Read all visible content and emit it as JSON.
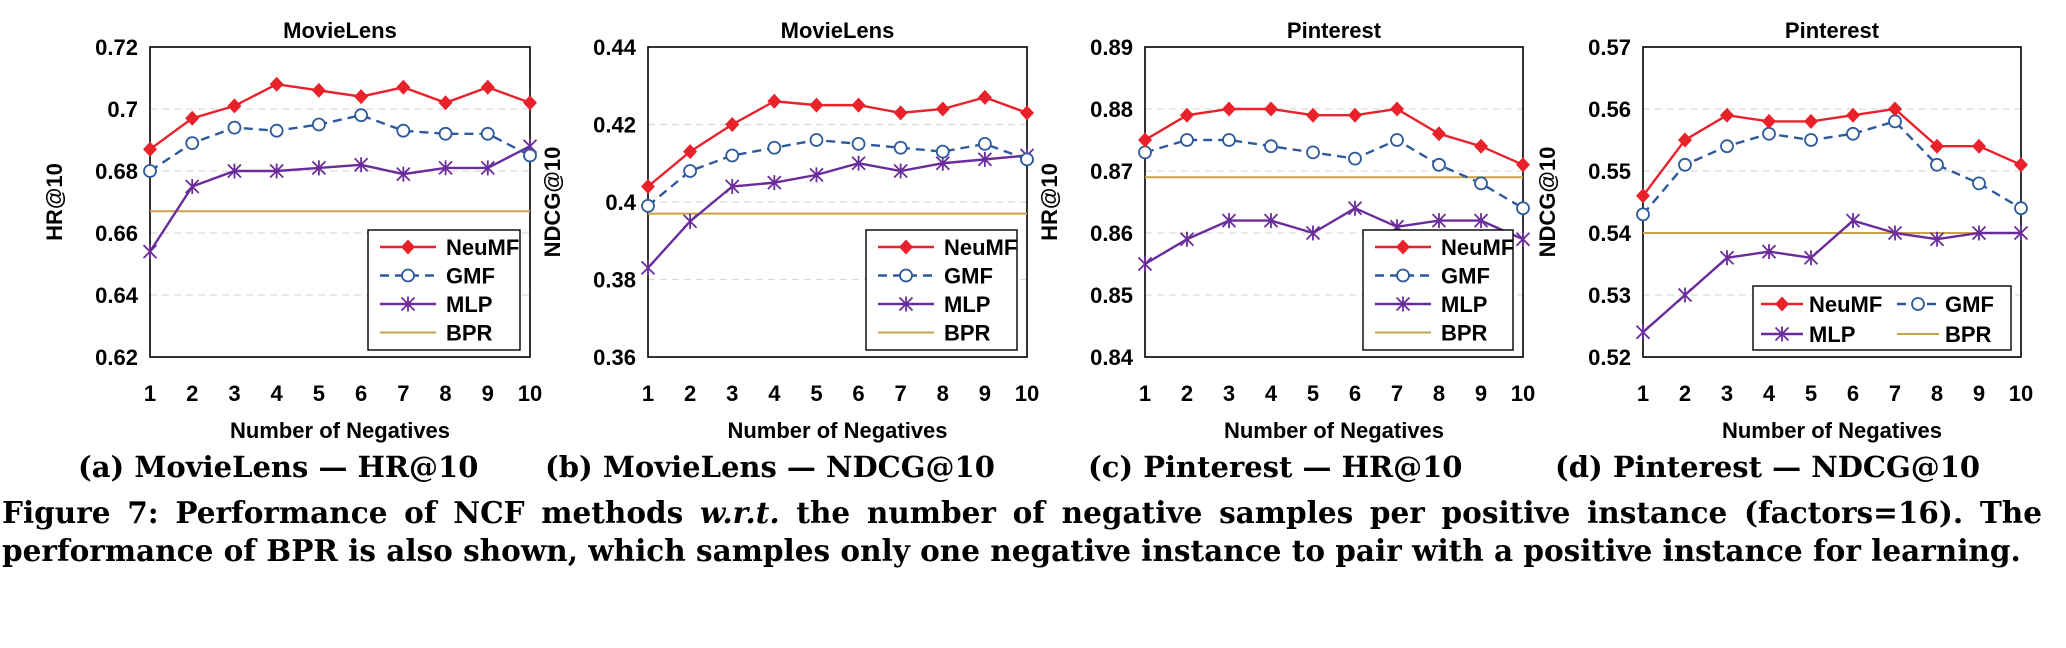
{
  "colors": {
    "NeuMF": "#e8212a",
    "GMF": "#2e5a9c",
    "MLP": "#6a2c9b",
    "BPR": "#c8a14a"
  },
  "chart_data": [
    {
      "type": "line",
      "title": "MovieLens",
      "xlabel": "Number of Negatives",
      "ylabel": "HR@10",
      "x": [
        1,
        2,
        3,
        4,
        5,
        6,
        7,
        8,
        9,
        10
      ],
      "ylim": [
        0.62,
        0.72
      ],
      "yticks": [
        "0.62",
        "0.64",
        "0.66",
        "0.68",
        "0.7",
        "0.72"
      ],
      "grid": true,
      "legend_layout": "column",
      "series": [
        {
          "name": "NeuMF",
          "marker": "diamond",
          "values": [
            0.687,
            0.697,
            0.701,
            0.708,
            0.706,
            0.704,
            0.707,
            0.702,
            0.707,
            0.702
          ]
        },
        {
          "name": "GMF",
          "marker": "circle",
          "dashed": true,
          "values": [
            0.68,
            0.689,
            0.694,
            0.693,
            0.695,
            0.698,
            0.693,
            0.692,
            0.692,
            0.685
          ]
        },
        {
          "name": "MLP",
          "marker": "star",
          "values": [
            0.654,
            0.675,
            0.68,
            0.68,
            0.681,
            0.682,
            0.679,
            0.681,
            0.681,
            0.688
          ]
        },
        {
          "name": "BPR",
          "marker": "none",
          "values": [
            0.667,
            0.667,
            0.667,
            0.667,
            0.667,
            0.667,
            0.667,
            0.667,
            0.667,
            0.667
          ]
        }
      ]
    },
    {
      "type": "line",
      "title": "MovieLens",
      "xlabel": "Number of Negatives",
      "ylabel": "NDCG@10",
      "x": [
        1,
        2,
        3,
        4,
        5,
        6,
        7,
        8,
        9,
        10
      ],
      "ylim": [
        0.36,
        0.44
      ],
      "yticks": [
        "0.36",
        "0.38",
        "0.4",
        "0.42",
        "0.44"
      ],
      "grid": true,
      "legend_layout": "column",
      "series": [
        {
          "name": "NeuMF",
          "marker": "diamond",
          "values": [
            0.404,
            0.413,
            0.42,
            0.426,
            0.425,
            0.425,
            0.423,
            0.424,
            0.427,
            0.423
          ]
        },
        {
          "name": "GMF",
          "marker": "circle",
          "dashed": true,
          "values": [
            0.399,
            0.408,
            0.412,
            0.414,
            0.416,
            0.415,
            0.414,
            0.413,
            0.415,
            0.411
          ]
        },
        {
          "name": "MLP",
          "marker": "star",
          "values": [
            0.383,
            0.395,
            0.404,
            0.405,
            0.407,
            0.41,
            0.408,
            0.41,
            0.411,
            0.412
          ]
        },
        {
          "name": "BPR",
          "marker": "none",
          "values": [
            0.397,
            0.397,
            0.397,
            0.397,
            0.397,
            0.397,
            0.397,
            0.397,
            0.397,
            0.397
          ]
        }
      ]
    },
    {
      "type": "line",
      "title": "Pinterest",
      "xlabel": "Number of Negatives",
      "ylabel": "HR@10",
      "x": [
        1,
        2,
        3,
        4,
        5,
        6,
        7,
        8,
        9,
        10
      ],
      "ylim": [
        0.84,
        0.89
      ],
      "yticks": [
        "0.84",
        "0.85",
        "0.86",
        "0.87",
        "0.88",
        "0.89"
      ],
      "grid": true,
      "legend_layout": "column",
      "series": [
        {
          "name": "NeuMF",
          "marker": "diamond",
          "values": [
            0.875,
            0.879,
            0.88,
            0.88,
            0.879,
            0.879,
            0.88,
            0.876,
            0.874,
            0.871
          ]
        },
        {
          "name": "GMF",
          "marker": "circle",
          "dashed": true,
          "values": [
            0.873,
            0.875,
            0.875,
            0.874,
            0.873,
            0.872,
            0.875,
            0.871,
            0.868,
            0.864
          ]
        },
        {
          "name": "MLP",
          "marker": "star",
          "values": [
            0.855,
            0.859,
            0.862,
            0.862,
            0.86,
            0.864,
            0.861,
            0.862,
            0.862,
            0.859
          ]
        },
        {
          "name": "BPR",
          "marker": "none",
          "values": [
            0.869,
            0.869,
            0.869,
            0.869,
            0.869,
            0.869,
            0.869,
            0.869,
            0.869,
            0.869
          ]
        }
      ]
    },
    {
      "type": "line",
      "title": "Pinterest",
      "xlabel": "Number of Negatives",
      "ylabel": "NDCG@10",
      "x": [
        1,
        2,
        3,
        4,
        5,
        6,
        7,
        8,
        9,
        10
      ],
      "ylim": [
        0.52,
        0.57
      ],
      "yticks": [
        "0.52",
        "0.53",
        "0.54",
        "0.55",
        "0.56",
        "0.57"
      ],
      "grid": true,
      "legend_layout": "grid",
      "series": [
        {
          "name": "NeuMF",
          "marker": "diamond",
          "values": [
            0.546,
            0.555,
            0.559,
            0.558,
            0.558,
            0.559,
            0.56,
            0.554,
            0.554,
            0.551
          ]
        },
        {
          "name": "GMF",
          "marker": "circle",
          "dashed": true,
          "values": [
            0.543,
            0.551,
            0.554,
            0.556,
            0.555,
            0.556,
            0.558,
            0.551,
            0.548,
            0.544
          ]
        },
        {
          "name": "MLP",
          "marker": "star",
          "values": [
            0.524,
            0.53,
            0.536,
            0.537,
            0.536,
            0.542,
            0.54,
            0.539,
            0.54,
            0.54
          ]
        },
        {
          "name": "BPR",
          "marker": "none",
          "values": [
            0.54,
            0.54,
            0.54,
            0.54,
            0.54,
            0.54,
            0.54,
            0.54,
            0.54,
            0.54
          ]
        }
      ]
    }
  ],
  "subcaptions": [
    "(a) MovieLens — HR@10",
    "(b) MovieLens — NDCG@10",
    "(c) Pinterest — HR@10",
    "(d) Pinterest — NDCG@10"
  ],
  "figure_caption": {
    "label": "Figure 7:",
    "text_1": "Performance of NCF methods",
    "wrt": "w.r.t.",
    "text_2": "the number of negative samples per positive instance (factors=16). The performance of BPR is also shown, which samples only one negative instance to pair with a positive instance for learning."
  }
}
